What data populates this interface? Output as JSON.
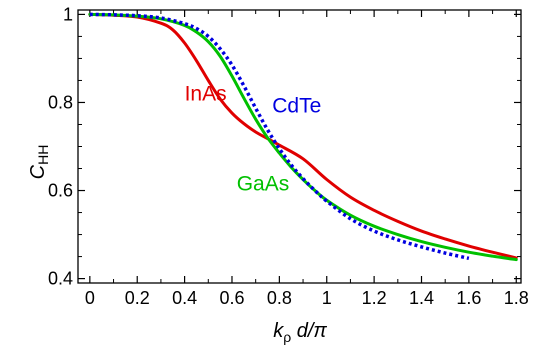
{
  "chart_data": {
    "type": "line",
    "title": "",
    "xlabel": {
      "k": "k",
      "rho": "ρ",
      "rest": " d/π"
    },
    "ylabel": {
      "main": "C",
      "sub": "HH"
    },
    "xlim": [
      -0.05,
      1.82
    ],
    "ylim": [
      0.39,
      1.01
    ],
    "xticks": [
      0,
      0.2,
      0.4,
      0.6,
      0.8,
      1,
      1.2,
      1.4,
      1.6,
      1.8
    ],
    "xtick_labels": [
      "0",
      "0.2",
      "0.4",
      "0.6",
      "0.8",
      "1",
      "1.2",
      "1.4",
      "1.6",
      "1.8"
    ],
    "yticks": [
      0.4,
      0.6,
      0.8,
      1
    ],
    "ytick_labels": [
      "0.4",
      "0.6",
      "0.8",
      "1"
    ],
    "grid": false,
    "series": [
      {
        "name": "InAs",
        "color": "#e00000",
        "dash": "solid",
        "x": [
          0,
          0.1,
          0.2,
          0.3,
          0.35,
          0.4,
          0.45,
          0.5,
          0.55,
          0.6,
          0.65,
          0.7,
          0.75,
          0.8,
          0.9,
          1.0,
          1.1,
          1.2,
          1.3,
          1.4,
          1.5,
          1.6,
          1.7,
          1.8
        ],
        "y": [
          1.0,
          0.998,
          0.994,
          0.98,
          0.965,
          0.935,
          0.895,
          0.85,
          0.808,
          0.776,
          0.752,
          0.733,
          0.718,
          0.703,
          0.672,
          0.625,
          0.585,
          0.555,
          0.53,
          0.508,
          0.49,
          0.474,
          0.46,
          0.447
        ]
      },
      {
        "name": "GaAs",
        "color": "#00c000",
        "dash": "solid",
        "x": [
          0,
          0.1,
          0.2,
          0.3,
          0.4,
          0.45,
          0.5,
          0.55,
          0.6,
          0.65,
          0.7,
          0.75,
          0.8,
          0.85,
          0.9,
          0.95,
          1.0,
          1.1,
          1.2,
          1.3,
          1.4,
          1.5,
          1.6,
          1.7,
          1.8
        ],
        "y": [
          1.0,
          0.999,
          0.996,
          0.99,
          0.975,
          0.96,
          0.938,
          0.905,
          0.86,
          0.81,
          0.762,
          0.72,
          0.685,
          0.653,
          0.625,
          0.6,
          0.578,
          0.544,
          0.519,
          0.5,
          0.484,
          0.471,
          0.46,
          0.451,
          0.443
        ]
      },
      {
        "name": "CdTe",
        "color": "#0000e0",
        "dash": "dotted",
        "x": [
          0,
          0.1,
          0.2,
          0.3,
          0.4,
          0.45,
          0.5,
          0.55,
          0.6,
          0.65,
          0.7,
          0.75,
          0.8,
          0.85,
          0.9,
          0.95,
          1.0,
          1.1,
          1.2,
          1.3,
          1.4,
          1.5,
          1.6
        ],
        "y": [
          1.0,
          0.999,
          0.997,
          0.992,
          0.979,
          0.968,
          0.95,
          0.922,
          0.885,
          0.838,
          0.787,
          0.738,
          0.695,
          0.658,
          0.627,
          0.6,
          0.576,
          0.536,
          0.508,
          0.488,
          0.472,
          0.458,
          0.446
        ]
      }
    ],
    "annotations": [
      {
        "text": "InAs",
        "color": "#e00000",
        "x": 0.4,
        "y": 0.805
      },
      {
        "text": "CdTe",
        "color": "#0000e0",
        "x": 0.77,
        "y": 0.777
      },
      {
        "text": "GaAs",
        "color": "#00c000",
        "x": 0.62,
        "y": 0.6
      }
    ]
  }
}
